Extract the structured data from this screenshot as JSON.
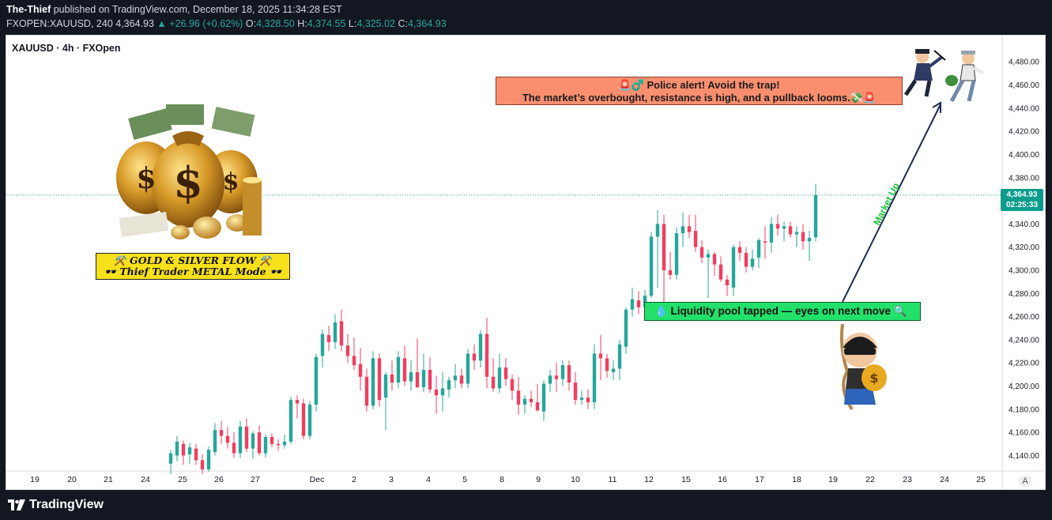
{
  "header": {
    "author": "The-Thief",
    "publish_text": "published on TradingView.com, December 18, 2025 11:34:28 EST",
    "symbol_line": "FXOPEN:XAUUSD, 240",
    "last": "4,364.93",
    "change": "+26.96 (+0.62%)",
    "o_label": "O:",
    "o": "4,328.50",
    "h_label": "H:",
    "h": "4,374.55",
    "l_label": "L:",
    "l": "4,325.02",
    "c_label": "C:",
    "c": "4,364.93"
  },
  "chart_title": "XAUUSD · 4h · FXOpen",
  "price_badge": {
    "price": "4,364.93",
    "countdown": "02:25:33"
  },
  "annotations": {
    "police_line1": "🚨♂️ Police alert!  Avoid the trap!",
    "police_line2": "The market’s overbought, resistance is high, and a pullback looms.💸🚨",
    "liquidity": "💧 Liquidity pool tapped — eyes on next move 🔍",
    "gold_line1": "⚒️ GOLD & SILVER FLOW ⚒️",
    "gold_line2": "🕶️ Thief Trader METAL Mode 🕶️",
    "arrow_label": "Market Up"
  },
  "footer": {
    "brand": "TradingView"
  },
  "axis_mode": "A",
  "colors": {
    "up": "#26a69a",
    "down": "#ef3f5f",
    "badge": "#0b9c8c",
    "price_line": "#26a69a"
  },
  "chart_data": {
    "type": "candlestick",
    "title": "XAUUSD · 4h · FXOpen",
    "y_ticks": [
      4140,
      4160,
      4180,
      4200,
      4220,
      4240,
      4260,
      4280,
      4300,
      4320,
      4340,
      4360,
      4380,
      4400,
      4420,
      4440,
      4460,
      4480
    ],
    "y_tick_labels": [
      "4,140.00",
      "4,160.00",
      "4,180.00",
      "4,200.00",
      "4,220.00",
      "4,240.00",
      "4,260.00",
      "4,280.00",
      "4,300.00",
      "4,320.00",
      "4,340.00",
      "4,360.00",
      "4,380.00",
      "4,400.00",
      "4,420.00",
      "4,440.00",
      "4,460.00",
      "4,480.00"
    ],
    "ylim": [
      4128,
      4502
    ],
    "x_labels": [
      "19",
      "20",
      "21",
      "24",
      "25",
      "26",
      "27",
      "Dec",
      "2",
      "3",
      "4",
      "5",
      "8",
      "9",
      "10",
      "11",
      "12",
      "15",
      "16",
      "17",
      "18",
      "19",
      "22",
      "23",
      "24",
      "25"
    ],
    "last_price": 4364.93,
    "grid": false,
    "candles": [
      {
        "o": 4133,
        "h": 4145,
        "l": 4124,
        "c": 4142
      },
      {
        "o": 4140,
        "h": 4157,
        "l": 4135,
        "c": 4152
      },
      {
        "o": 4150,
        "h": 4153,
        "l": 4132,
        "c": 4140
      },
      {
        "o": 4141,
        "h": 4151,
        "l": 4133,
        "c": 4147
      },
      {
        "o": 4146,
        "h": 4150,
        "l": 4132,
        "c": 4136
      },
      {
        "o": 4136,
        "h": 4141,
        "l": 4124,
        "c": 4128
      },
      {
        "o": 4128,
        "h": 4148,
        "l": 4126,
        "c": 4145
      },
      {
        "o": 4143,
        "h": 4168,
        "l": 4140,
        "c": 4162
      },
      {
        "o": 4162,
        "h": 4170,
        "l": 4150,
        "c": 4157
      },
      {
        "o": 4157,
        "h": 4165,
        "l": 4146,
        "c": 4151
      },
      {
        "o": 4151,
        "h": 4160,
        "l": 4138,
        "c": 4142
      },
      {
        "o": 4142,
        "h": 4170,
        "l": 4138,
        "c": 4165
      },
      {
        "o": 4165,
        "h": 4172,
        "l": 4143,
        "c": 4146
      },
      {
        "o": 4146,
        "h": 4161,
        "l": 4137,
        "c": 4159
      },
      {
        "o": 4160,
        "h": 4166,
        "l": 4140,
        "c": 4142
      },
      {
        "o": 4142,
        "h": 4158,
        "l": 4138,
        "c": 4156
      },
      {
        "o": 4156,
        "h": 4159,
        "l": 4147,
        "c": 4150
      },
      {
        "o": 4150,
        "h": 4154,
        "l": 4144,
        "c": 4149
      },
      {
        "o": 4149,
        "h": 4158,
        "l": 4146,
        "c": 4152
      },
      {
        "o": 4152,
        "h": 4191,
        "l": 4150,
        "c": 4188
      },
      {
        "o": 4188,
        "h": 4192,
        "l": 4172,
        "c": 4185
      },
      {
        "o": 4185,
        "h": 4189,
        "l": 4154,
        "c": 4157
      },
      {
        "o": 4157,
        "h": 4187,
        "l": 4154,
        "c": 4184
      },
      {
        "o": 4184,
        "h": 4228,
        "l": 4178,
        "c": 4225
      },
      {
        "o": 4226,
        "h": 4249,
        "l": 4216,
        "c": 4245
      },
      {
        "o": 4244,
        "h": 4252,
        "l": 4230,
        "c": 4238
      },
      {
        "o": 4238,
        "h": 4262,
        "l": 4232,
        "c": 4255
      },
      {
        "o": 4256,
        "h": 4266,
        "l": 4230,
        "c": 4235
      },
      {
        "o": 4235,
        "h": 4245,
        "l": 4220,
        "c": 4226
      },
      {
        "o": 4226,
        "h": 4242,
        "l": 4214,
        "c": 4218
      },
      {
        "o": 4219,
        "h": 4233,
        "l": 4196,
        "c": 4208
      },
      {
        "o": 4208,
        "h": 4215,
        "l": 4178,
        "c": 4183
      },
      {
        "o": 4183,
        "h": 4230,
        "l": 4180,
        "c": 4224
      },
      {
        "o": 4224,
        "h": 4228,
        "l": 4182,
        "c": 4188
      },
      {
        "o": 4190,
        "h": 4212,
        "l": 4162,
        "c": 4210
      },
      {
        "o": 4210,
        "h": 4222,
        "l": 4196,
        "c": 4203
      },
      {
        "o": 4203,
        "h": 4230,
        "l": 4198,
        "c": 4225
      },
      {
        "o": 4224,
        "h": 4235,
        "l": 4200,
        "c": 4204
      },
      {
        "o": 4204,
        "h": 4222,
        "l": 4196,
        "c": 4212
      },
      {
        "o": 4212,
        "h": 4241,
        "l": 4198,
        "c": 4199
      },
      {
        "o": 4199,
        "h": 4228,
        "l": 4195,
        "c": 4214
      },
      {
        "o": 4214,
        "h": 4225,
        "l": 4194,
        "c": 4197
      },
      {
        "o": 4197,
        "h": 4209,
        "l": 4176,
        "c": 4192
      },
      {
        "o": 4192,
        "h": 4212,
        "l": 4178,
        "c": 4198
      },
      {
        "o": 4197,
        "h": 4208,
        "l": 4190,
        "c": 4205
      },
      {
        "o": 4205,
        "h": 4219,
        "l": 4198,
        "c": 4209
      },
      {
        "o": 4209,
        "h": 4215,
        "l": 4198,
        "c": 4202
      },
      {
        "o": 4202,
        "h": 4232,
        "l": 4198,
        "c": 4228
      },
      {
        "o": 4228,
        "h": 4236,
        "l": 4214,
        "c": 4222
      },
      {
        "o": 4222,
        "h": 4248,
        "l": 4216,
        "c": 4245
      },
      {
        "o": 4245,
        "h": 4259,
        "l": 4198,
        "c": 4208
      },
      {
        "o": 4208,
        "h": 4224,
        "l": 4195,
        "c": 4198
      },
      {
        "o": 4198,
        "h": 4228,
        "l": 4194,
        "c": 4216
      },
      {
        "o": 4216,
        "h": 4224,
        "l": 4200,
        "c": 4206
      },
      {
        "o": 4206,
        "h": 4210,
        "l": 4188,
        "c": 4196
      },
      {
        "o": 4196,
        "h": 4208,
        "l": 4175,
        "c": 4184
      },
      {
        "o": 4184,
        "h": 4192,
        "l": 4176,
        "c": 4189
      },
      {
        "o": 4189,
        "h": 4196,
        "l": 4182,
        "c": 4186
      },
      {
        "o": 4186,
        "h": 4202,
        "l": 4178,
        "c": 4179
      },
      {
        "o": 4178,
        "h": 4205,
        "l": 4170,
        "c": 4202
      },
      {
        "o": 4202,
        "h": 4214,
        "l": 4195,
        "c": 4209
      },
      {
        "o": 4209,
        "h": 4220,
        "l": 4195,
        "c": 4206
      },
      {
        "o": 4206,
        "h": 4222,
        "l": 4200,
        "c": 4218
      },
      {
        "o": 4218,
        "h": 4222,
        "l": 4196,
        "c": 4203
      },
      {
        "o": 4203,
        "h": 4212,
        "l": 4184,
        "c": 4188
      },
      {
        "o": 4188,
        "h": 4196,
        "l": 4184,
        "c": 4190
      },
      {
        "o": 4190,
        "h": 4197,
        "l": 4180,
        "c": 4186
      },
      {
        "o": 4186,
        "h": 4236,
        "l": 4180,
        "c": 4228
      },
      {
        "o": 4228,
        "h": 4244,
        "l": 4205,
        "c": 4224
      },
      {
        "o": 4224,
        "h": 4228,
        "l": 4207,
        "c": 4213
      },
      {
        "o": 4212,
        "h": 4222,
        "l": 4205,
        "c": 4215
      },
      {
        "o": 4215,
        "h": 4240,
        "l": 4205,
        "c": 4236
      },
      {
        "o": 4234,
        "h": 4268,
        "l": 4228,
        "c": 4266
      },
      {
        "o": 4266,
        "h": 4285,
        "l": 4260,
        "c": 4275
      },
      {
        "o": 4274,
        "h": 4282,
        "l": 4262,
        "c": 4268
      },
      {
        "o": 4268,
        "h": 4283,
        "l": 4265,
        "c": 4278
      },
      {
        "o": 4278,
        "h": 4333,
        "l": 4276,
        "c": 4329
      },
      {
        "o": 4329,
        "h": 4352,
        "l": 4285,
        "c": 4340
      },
      {
        "o": 4340,
        "h": 4348,
        "l": 4258,
        "c": 4300
      },
      {
        "o": 4300,
        "h": 4316,
        "l": 4292,
        "c": 4296
      },
      {
        "o": 4296,
        "h": 4337,
        "l": 4292,
        "c": 4332
      },
      {
        "o": 4332,
        "h": 4350,
        "l": 4320,
        "c": 4338
      },
      {
        "o": 4338,
        "h": 4348,
        "l": 4328,
        "c": 4333
      },
      {
        "o": 4334,
        "h": 4348,
        "l": 4316,
        "c": 4320
      },
      {
        "o": 4320,
        "h": 4326,
        "l": 4306,
        "c": 4311
      },
      {
        "o": 4311,
        "h": 4318,
        "l": 4276,
        "c": 4314
      },
      {
        "o": 4314,
        "h": 4316,
        "l": 4295,
        "c": 4305
      },
      {
        "o": 4305,
        "h": 4312,
        "l": 4290,
        "c": 4292
      },
      {
        "o": 4292,
        "h": 4296,
        "l": 4278,
        "c": 4287
      },
      {
        "o": 4285,
        "h": 4322,
        "l": 4278,
        "c": 4320
      },
      {
        "o": 4320,
        "h": 4325,
        "l": 4308,
        "c": 4315
      },
      {
        "o": 4315,
        "h": 4320,
        "l": 4298,
        "c": 4303
      },
      {
        "o": 4303,
        "h": 4318,
        "l": 4300,
        "c": 4310
      },
      {
        "o": 4311,
        "h": 4328,
        "l": 4302,
        "c": 4326
      },
      {
        "o": 4325,
        "h": 4338,
        "l": 4310,
        "c": 4324
      },
      {
        "o": 4324,
        "h": 4346,
        "l": 4315,
        "c": 4340
      },
      {
        "o": 4340,
        "h": 4348,
        "l": 4330,
        "c": 4336
      },
      {
        "o": 4336,
        "h": 4342,
        "l": 4325,
        "c": 4338
      },
      {
        "o": 4338,
        "h": 4342,
        "l": 4328,
        "c": 4331
      },
      {
        "o": 4331,
        "h": 4338,
        "l": 4320,
        "c": 4333
      },
      {
        "o": 4333,
        "h": 4340,
        "l": 4318,
        "c": 4325
      },
      {
        "o": 4325,
        "h": 4334,
        "l": 4308,
        "c": 4328
      },
      {
        "o": 4328.5,
        "h": 4374.55,
        "l": 4325.02,
        "c": 4364.93
      }
    ]
  }
}
